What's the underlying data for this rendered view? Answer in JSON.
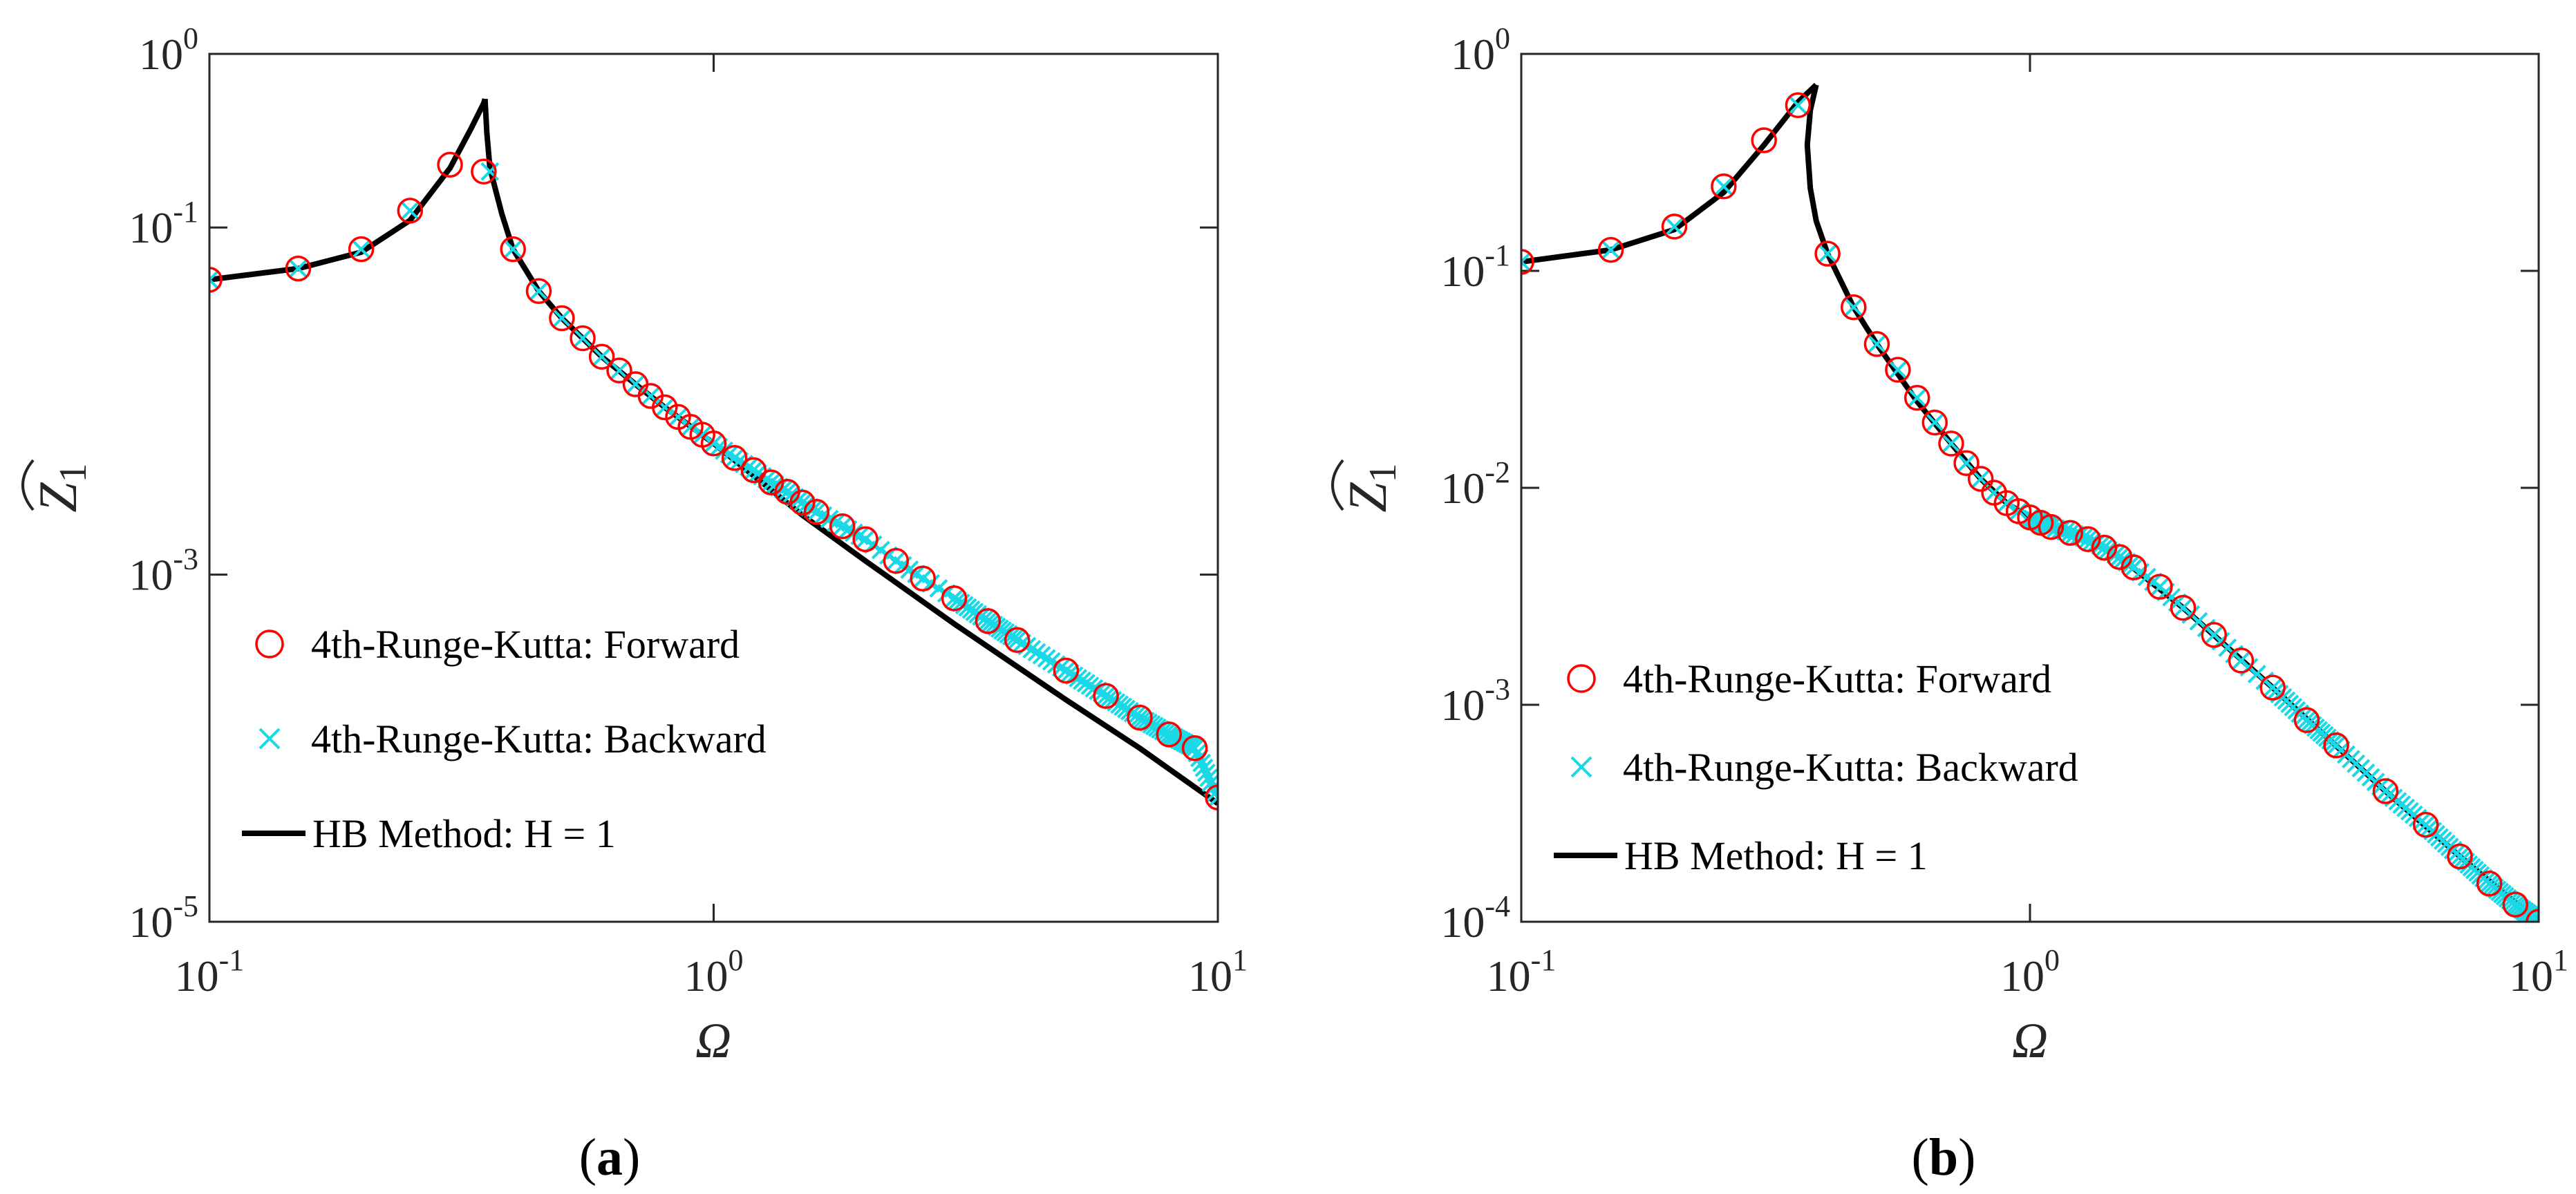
{
  "colors": {
    "forward": "#ff0000",
    "backward": "#19d9e6",
    "hb": "#000000",
    "axis": "#262626"
  },
  "chart_data": [
    {
      "type": "line",
      "panel_label": {
        "open": "(",
        "letter": "a",
        "close": ")"
      },
      "xscale": "log",
      "yscale": "log",
      "xlim": [
        0.1,
        10
      ],
      "ylim": [
        1e-05,
        1
      ],
      "xticks": [
        0.1,
        1,
        10
      ],
      "yticks": [
        1e-05,
        0.001,
        0.1,
        1
      ],
      "xtick_labels": [
        {
          "base": "10",
          "exp": "-1"
        },
        {
          "base": "10",
          "exp": "0"
        },
        {
          "base": "10",
          "exp": "1"
        }
      ],
      "ytick_labels": [
        {
          "base": "10",
          "exp": "-5"
        },
        {
          "base": "10",
          "exp": "-3"
        },
        {
          "base": "10",
          "exp": "-1"
        },
        {
          "base": "10",
          "exp": "0"
        }
      ],
      "xlabel": "Ω",
      "ylabel": {
        "main": "Z",
        "sub": "1",
        "hat": "true"
      },
      "legend_position": "lower-left",
      "hb_curve": {
        "lower_branch": {
          "x": [
            0.1,
            0.15,
            0.2,
            0.25,
            0.3,
            0.33,
            0.35,
            0.352
          ],
          "y": [
            0.05,
            0.058,
            0.072,
            0.11,
            0.22,
            0.37,
            0.52,
            0.55
          ]
        },
        "upper_branch": {
          "x": [
            0.352,
            0.355,
            0.36,
            0.38,
            0.4,
            0.45,
            0.5,
            0.6,
            0.7,
            0.8,
            1.0,
            1.5,
            2.0,
            3.0,
            5.0,
            7.0,
            10.0
          ],
          "y": [
            0.55,
            0.35,
            0.22,
            0.12,
            0.075,
            0.043,
            0.03,
            0.018,
            0.0125,
            0.0092,
            0.0057,
            0.0022,
            0.0012,
            0.00052,
            0.00019,
            0.0001,
            4.8e-05
          ]
        }
      },
      "forward_markers": {
        "x": [
          0.1,
          0.15,
          0.2,
          0.25,
          0.3,
          0.35,
          0.4,
          0.45,
          0.5,
          0.55,
          0.6,
          0.65,
          0.7,
          0.75,
          0.8,
          0.85,
          0.9,
          0.95,
          1.0,
          1.1,
          1.2,
          1.3,
          1.4,
          1.5,
          1.6,
          1.8,
          2.0,
          2.3,
          2.6,
          3.0,
          3.5,
          4.0,
          5.0,
          6.0,
          7.0,
          8.0,
          9.0,
          10.0
        ],
        "y": [
          0.05,
          0.058,
          0.075,
          0.125,
          0.23,
          0.21,
          0.075,
          0.043,
          0.03,
          0.023,
          0.018,
          0.015,
          0.0125,
          0.0107,
          0.0092,
          0.0081,
          0.0071,
          0.0064,
          0.0057,
          0.0047,
          0.004,
          0.0034,
          0.003,
          0.0026,
          0.0023,
          0.0019,
          0.0016,
          0.0012,
          0.00095,
          0.00073,
          0.00054,
          0.00042,
          0.00028,
          0.0002,
          0.00015,
          0.00012,
          0.0001,
          5.2e-05
        ]
      },
      "backward_markers": {
        "x": [
          0.1,
          0.15,
          0.2,
          0.25,
          0.36,
          0.4,
          0.45,
          0.5,
          0.55,
          0.6,
          0.65,
          0.7,
          0.75,
          0.8,
          0.85,
          0.9,
          0.95,
          1.0,
          1.1,
          1.2,
          1.3,
          1.4,
          1.5,
          1.6,
          1.8,
          2.0,
          2.3,
          2.6,
          3.0,
          3.5,
          4.0,
          5.0,
          6.0,
          7.0,
          8.0,
          9.0,
          10.0
        ],
        "y": [
          0.05,
          0.058,
          0.075,
          0.125,
          0.21,
          0.075,
          0.043,
          0.03,
          0.023,
          0.018,
          0.015,
          0.0125,
          0.0107,
          0.0092,
          0.0081,
          0.0071,
          0.0064,
          0.0057,
          0.0047,
          0.004,
          0.0034,
          0.003,
          0.0026,
          0.0023,
          0.0019,
          0.0016,
          0.0012,
          0.00095,
          0.00073,
          0.00054,
          0.00042,
          0.00028,
          0.0002,
          0.00015,
          0.00012,
          0.0001,
          5.2e-05
        ]
      },
      "legend": [
        {
          "kind": "forward",
          "label": "4th-Runge-Kutta: Forward"
        },
        {
          "kind": "backward",
          "label": "4th-Runge-Kutta: Backward"
        },
        {
          "kind": "hb",
          "label": "HB Method: H = 1"
        }
      ]
    },
    {
      "type": "line",
      "panel_label": {
        "open": "(",
        "letter": "b",
        "close": ")"
      },
      "xscale": "log",
      "yscale": "log",
      "xlim": [
        0.1,
        10
      ],
      "ylim": [
        0.0001,
        1
      ],
      "xticks": [
        0.1,
        1,
        10
      ],
      "yticks": [
        0.0001,
        0.001,
        0.01,
        0.1,
        1
      ],
      "xtick_labels": [
        {
          "base": "10",
          "exp": "-1"
        },
        {
          "base": "10",
          "exp": "0"
        },
        {
          "base": "10",
          "exp": "1"
        }
      ],
      "ytick_labels": [
        {
          "base": "10",
          "exp": "-4"
        },
        {
          "base": "10",
          "exp": "-3"
        },
        {
          "base": "10",
          "exp": "-2"
        },
        {
          "base": "10",
          "exp": "-1"
        },
        {
          "base": "10",
          "exp": "0"
        }
      ],
      "xlabel": "Ω",
      "ylabel": {
        "main": "Z",
        "sub": "1",
        "hat": "true"
      },
      "legend_position": "lower-left",
      "hb_curve": {
        "lower_branch": {
          "x": [
            0.1,
            0.15,
            0.2,
            0.25,
            0.3,
            0.35,
            0.38
          ],
          "y": [
            0.11,
            0.125,
            0.155,
            0.23,
            0.38,
            0.6,
            0.72
          ]
        },
        "upper_branch": {
          "x": [
            0.38,
            0.37,
            0.365,
            0.37,
            0.38,
            0.4,
            0.45,
            0.5,
            0.6,
            0.7,
            0.8,
            0.9,
            1.0,
            1.1,
            1.2,
            1.3,
            1.5,
            2.0,
            3.0,
            5.0,
            7.0,
            10.0
          ],
          "y": [
            0.72,
            0.55,
            0.38,
            0.24,
            0.17,
            0.12,
            0.068,
            0.046,
            0.025,
            0.016,
            0.011,
            0.0085,
            0.0073,
            0.0066,
            0.0062,
            0.0058,
            0.0048,
            0.0028,
            0.0012,
            0.0004,
            0.0002,
            0.0001
          ]
        }
      },
      "forward_markers": {
        "x": [
          0.1,
          0.15,
          0.2,
          0.25,
          0.3,
          0.35,
          0.4,
          0.45,
          0.5,
          0.55,
          0.6,
          0.65,
          0.7,
          0.75,
          0.8,
          0.85,
          0.9,
          0.95,
          1.0,
          1.05,
          1.1,
          1.2,
          1.3,
          1.4,
          1.5,
          1.6,
          1.8,
          2.0,
          2.3,
          2.6,
          3.0,
          3.5,
          4.0,
          5.0,
          6.0,
          7.0,
          8.0,
          9.0,
          10.0
        ],
        "y": [
          0.11,
          0.125,
          0.16,
          0.245,
          0.4,
          0.58,
          0.12,
          0.068,
          0.046,
          0.035,
          0.026,
          0.02,
          0.016,
          0.013,
          0.011,
          0.0095,
          0.0085,
          0.0078,
          0.0073,
          0.0069,
          0.0066,
          0.0062,
          0.0058,
          0.0053,
          0.0048,
          0.0043,
          0.0035,
          0.0028,
          0.0021,
          0.0016,
          0.0012,
          0.00085,
          0.00065,
          0.0004,
          0.00028,
          0.0002,
          0.00015,
          0.00012,
          0.0001
        ]
      },
      "backward_markers": {
        "x": [
          0.1,
          0.15,
          0.2,
          0.25,
          0.35,
          0.4,
          0.45,
          0.5,
          0.55,
          0.6,
          0.65,
          0.7,
          0.75,
          0.8,
          0.85,
          0.9,
          0.95,
          1.0,
          1.05,
          1.1,
          1.2,
          1.3,
          1.4,
          1.5,
          1.6,
          1.8,
          2.0,
          2.3,
          2.6,
          3.0,
          3.5,
          4.0,
          5.0,
          6.0,
          7.0,
          8.0,
          9.0,
          10.0
        ],
        "y": [
          0.11,
          0.125,
          0.16,
          0.245,
          0.58,
          0.12,
          0.068,
          0.046,
          0.035,
          0.026,
          0.02,
          0.016,
          0.013,
          0.011,
          0.0095,
          0.0085,
          0.0078,
          0.0073,
          0.0069,
          0.0066,
          0.0062,
          0.0058,
          0.0053,
          0.0048,
          0.0043,
          0.0035,
          0.0028,
          0.0021,
          0.0016,
          0.0012,
          0.00085,
          0.00065,
          0.0004,
          0.00028,
          0.0002,
          0.00015,
          0.00012,
          0.0001
        ]
      },
      "legend": [
        {
          "kind": "forward",
          "label": "4th-Runge-Kutta: Forward"
        },
        {
          "kind": "backward",
          "label": "4th-Runge-Kutta: Backward"
        },
        {
          "kind": "hb",
          "label": "HB Method: H = 1"
        }
      ]
    }
  ]
}
